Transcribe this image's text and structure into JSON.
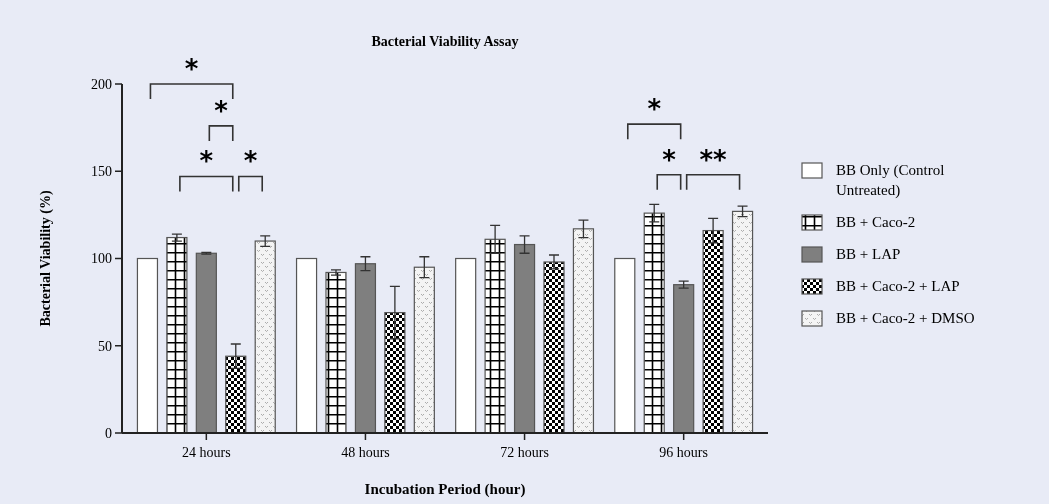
{
  "chart_data": {
    "type": "bar",
    "title": "Bacterial Viability Assay",
    "xlabel": "Incubation Period (hour)",
    "ylabel": "Bacterial Viability (%)",
    "categories": [
      "24 hours",
      "48 hours",
      "72 hours",
      "96 hours"
    ],
    "series": [
      {
        "name": "BB Only (Control Untreated)",
        "color": "#ffffff",
        "values": [
          100,
          100,
          100,
          100
        ]
      },
      {
        "name": "BB + Caco-2",
        "color": "#ffffff",
        "values": [
          112,
          92,
          111,
          126
        ],
        "errors": [
          2,
          1.5,
          8,
          5
        ]
      },
      {
        "name": "BB + LAP",
        "color": "#7f7f7f",
        "values": [
          103,
          97,
          108,
          85
        ],
        "errors": [
          0.5,
          4,
          5,
          2
        ]
      },
      {
        "name": "BB + Caco-2 + LAP",
        "color": "#000000",
        "values": [
          44,
          69,
          98,
          116
        ],
        "errors": [
          7,
          15,
          4,
          7
        ]
      },
      {
        "name": "BB + Caco-2 + DMSO",
        "color": "#f4f4f4",
        "values": [
          110,
          95,
          117,
          127
        ],
        "errors": [
          3,
          6,
          5,
          3
        ]
      }
    ],
    "ylim": [
      0,
      200
    ],
    "yticks": [
      0,
      50,
      100,
      150,
      200
    ],
    "grid": false,
    "legend": "right",
    "annotations": [
      "*",
      "*",
      "*",
      "*",
      "*",
      "*",
      "**"
    ]
  }
}
